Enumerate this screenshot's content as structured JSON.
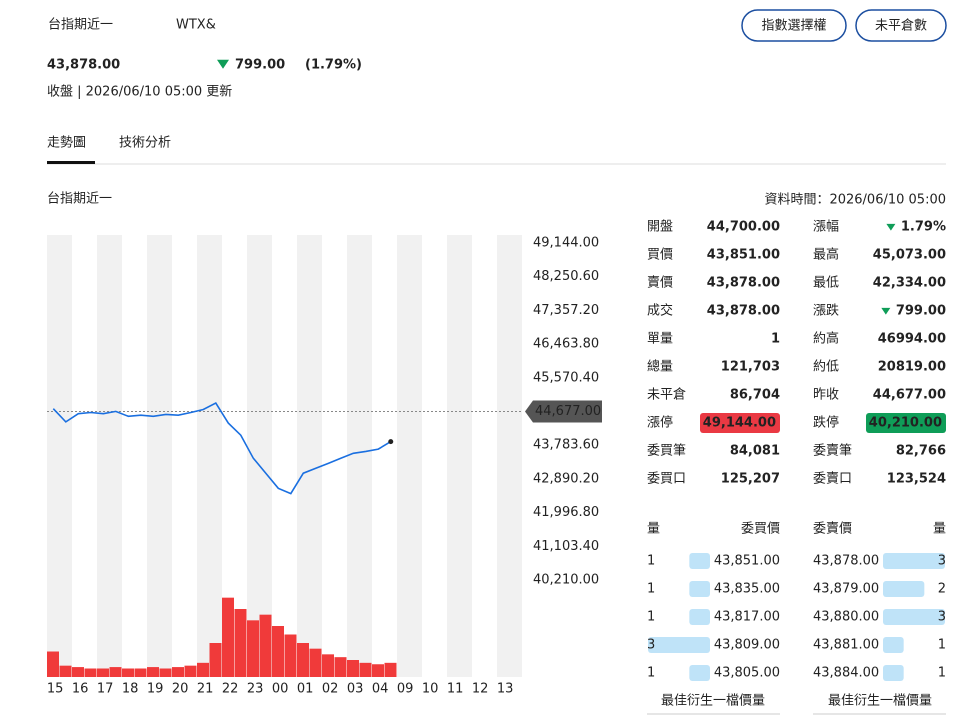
{
  "header": {
    "title": "台指期近一",
    "symbol": "WTX&",
    "price": "43,878.00",
    "change": "799.00",
    "change_pct": "(1.79%)",
    "direction": "down",
    "status": "收盤 | 2026/06/10 05:00 更新",
    "color": "#0f9d58",
    "buttons": [
      "指數選擇權",
      "未平倉數"
    ]
  },
  "tabs": {
    "items": [
      "走勢圖",
      "技術分析"
    ],
    "active": 0
  },
  "panel": {
    "title": "台指期近一",
    "data_time": "資料時間：2026/06/10 05:00"
  },
  "chart_data": {
    "type": "line",
    "categories": [
      "15",
      null,
      "16",
      null,
      "17",
      null,
      "18",
      null,
      "19",
      null,
      "20",
      null,
      "21",
      null,
      "22",
      null,
      "23",
      null,
      "00",
      null,
      "01",
      null,
      "02",
      null,
      "03",
      null,
      "04",
      null,
      "09",
      null,
      "10",
      null,
      "11",
      null,
      "12",
      null,
      "13",
      null
    ],
    "series": [
      {
        "name": "price",
        "color": "#1a6fe0",
        "values": [
          44750,
          44400,
          44620,
          44650,
          44620,
          44680,
          44550,
          44580,
          44550,
          44600,
          44580,
          44650,
          44730,
          44900,
          44370,
          44050,
          43440,
          43040,
          42640,
          42500,
          43040,
          43170,
          43300,
          43440,
          43570,
          43620,
          43680,
          43878,
          null,
          null,
          null,
          null,
          null,
          null,
          null,
          null,
          null,
          null
        ]
      },
      {
        "name": "volume",
        "color": "#f03a3a",
        "axis": "y2",
        "values": [
          900,
          400,
          350,
          300,
          300,
          350,
          300,
          300,
          350,
          300,
          350,
          400,
          500,
          1200,
          2800,
          2400,
          2000,
          2200,
          1800,
          1500,
          1200,
          1000,
          800,
          700,
          600,
          500,
          450,
          500,
          null,
          null,
          null,
          null,
          null,
          null,
          null,
          null,
          null,
          null
        ]
      }
    ],
    "ylim": [
      40210,
      49144
    ],
    "yticks": [
      {
        "value": 40210,
        "label": "40,210.00"
      },
      {
        "value": 41103.4,
        "label": "41,103.40"
      },
      {
        "value": 41996.8,
        "label": "41,996.80"
      },
      {
        "value": 42890.2,
        "label": "42,890.20"
      },
      {
        "value": 43783.6,
        "label": "43,783.60"
      },
      {
        "value": 45570.4,
        "label": "45,570.40"
      },
      {
        "value": 46463.8,
        "label": "46,463.80"
      },
      {
        "value": 47357.2,
        "label": "47,357.20"
      },
      {
        "value": 48250.6,
        "label": "48,250.60"
      },
      {
        "value": 49144,
        "label": "49,144.00"
      }
    ],
    "y2lim": [
      0,
      3000
    ],
    "prev_close": {
      "value": 44677,
      "label": "44,677.00"
    }
  },
  "quote": {
    "left": [
      {
        "label": "開盤",
        "value": "44,700.00",
        "color": "#e0343f"
      },
      {
        "label": "買價",
        "value": "43,851.00",
        "color": "#0f9d58"
      },
      {
        "label": "賣價",
        "value": "43,878.00",
        "color": "#0f9d58"
      },
      {
        "label": "成交",
        "value": "43,878.00",
        "color": "#0f9d58"
      },
      {
        "label": "單量",
        "value": "1",
        "color": "#111111"
      },
      {
        "label": "總量",
        "value": "121,703",
        "color": "#111111"
      },
      {
        "label": "未平倉",
        "value": "86,704",
        "color": "#111111"
      },
      {
        "label": "漲停",
        "value": "49,144.00",
        "color": "#ffffff",
        "badge": "#ea3943"
      },
      {
        "label": "委買筆",
        "value": "84,081",
        "color": "#111111"
      },
      {
        "label": "委買口",
        "value": "125,207",
        "color": "#111111"
      }
    ],
    "right": [
      {
        "label": "漲幅",
        "value": "1.79%",
        "color": "#0f9d58",
        "direction": "down"
      },
      {
        "label": "最高",
        "value": "45,073.00",
        "color": "#e0343f"
      },
      {
        "label": "最低",
        "value": "42,334.00",
        "color": "#0f9d58"
      },
      {
        "label": "漲跌",
        "value": "799.00",
        "color": "#0f9d58",
        "direction": "down"
      },
      {
        "label": "約高",
        "value": "46994.00",
        "color": "#111111"
      },
      {
        "label": "約低",
        "value": "20819.00",
        "color": "#111111"
      },
      {
        "label": "昨收",
        "value": "44,677.00",
        "color": "#111111"
      },
      {
        "label": "跌停",
        "value": "40,210.00",
        "color": "#ffffff",
        "badge": "#0f9d58"
      },
      {
        "label": "委賣筆",
        "value": "82,766",
        "color": "#111111"
      },
      {
        "label": "委賣口",
        "value": "123,524",
        "color": "#111111"
      }
    ]
  },
  "order_book": {
    "headers": [
      "量",
      "委買價",
      "委賣價",
      "量"
    ],
    "bar_color": "#bfe3f8",
    "price_color": "#0f9d58",
    "rows": [
      {
        "bid_qty": 1,
        "bid": "43,851.00",
        "ask": "43,878.00",
        "ask_qty": 3
      },
      {
        "bid_qty": 1,
        "bid": "43,835.00",
        "ask": "43,879.00",
        "ask_qty": 2
      },
      {
        "bid_qty": 1,
        "bid": "43,817.00",
        "ask": "43,880.00",
        "ask_qty": 3
      },
      {
        "bid_qty": 3,
        "bid": "43,809.00",
        "ask": "43,881.00",
        "ask_qty": 1
      },
      {
        "bid_qty": 1,
        "bid": "43,805.00",
        "ask": "43,884.00",
        "ask_qty": 1
      }
    ],
    "footer": [
      "最佳衍生一檔價量",
      "最佳衍生一檔價量"
    ]
  }
}
